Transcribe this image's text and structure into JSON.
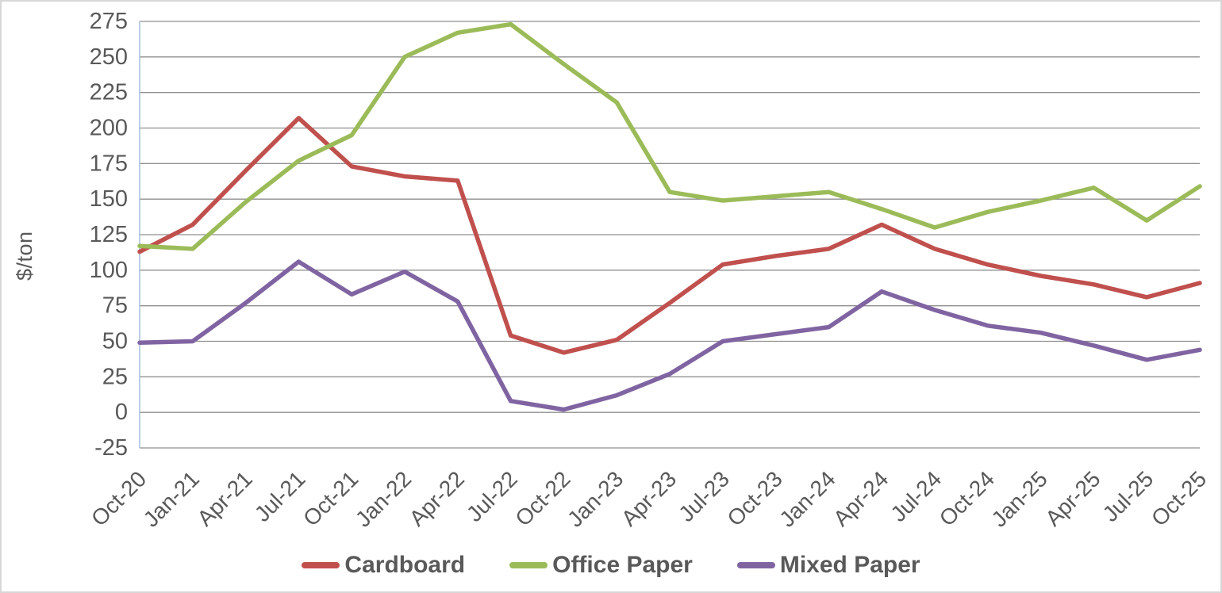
{
  "chart_data": {
    "type": "line",
    "title": "",
    "ylabel": "$/ton",
    "xlabel": "",
    "ylim": [
      -25,
      275
    ],
    "ytick_step": 25,
    "grid": true,
    "legend_position": "bottom",
    "categories": [
      "Oct-20",
      "Jan-21",
      "Apr-21",
      "Jul-21",
      "Oct-21",
      "Jan-22",
      "Apr-22",
      "Jul-22",
      "Oct-22",
      "Jan-23",
      "Apr-23",
      "Jul-23",
      "Oct-23",
      "Jan-24",
      "Apr-24",
      "Jul-24",
      "Oct-24",
      "Jan-25",
      "Apr-25",
      "Jul-25",
      "Oct-25"
    ],
    "series": [
      {
        "name": "Cardboard",
        "color": "#C0504D",
        "values": [
          113,
          132,
          170,
          207,
          173,
          166,
          163,
          54,
          42,
          51,
          77,
          104,
          110,
          115,
          132,
          115,
          104,
          96,
          90,
          81,
          91
        ]
      },
      {
        "name": "Office Paper",
        "color": "#9BBB59",
        "values": [
          117,
          115,
          148,
          177,
          195,
          250,
          267,
          273,
          245,
          218,
          155,
          149,
          152,
          155,
          143,
          130,
          141,
          149,
          158,
          135,
          159
        ]
      },
      {
        "name": "Mixed Paper",
        "color": "#8064A2",
        "values": [
          49,
          50,
          77,
          106,
          83,
          99,
          78,
          8,
          2,
          12,
          27,
          50,
          55,
          60,
          85,
          72,
          61,
          56,
          47,
          37,
          44
        ]
      }
    ],
    "axis_colors": {
      "gridline": "#8f8f8f",
      "y_axis_line": "#a9c2de",
      "tick_label": "#595959"
    }
  }
}
